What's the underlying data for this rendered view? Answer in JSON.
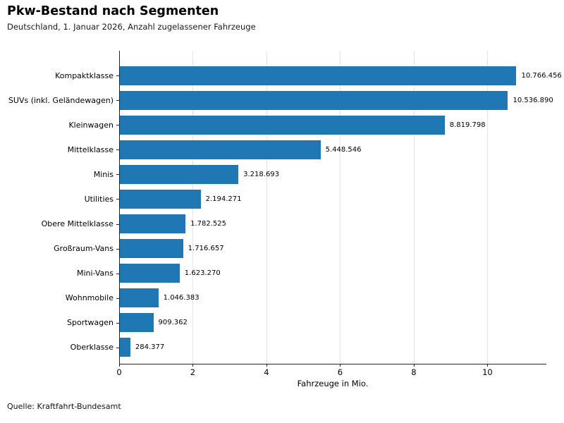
{
  "footer": {
    "source": "Quelle: Kraftfahrt-Bundesamt"
  },
  "chart_data": {
    "type": "bar",
    "orientation": "horizontal",
    "title": "Pkw-Bestand nach Segmenten",
    "subtitle": "Deutschland, 1. Januar 2026, Anzahl zugelassener Fahrzeuge",
    "categories": [
      "Kompaktklasse",
      "SUVs (inkl. Geländewagen)",
      "Kleinwagen",
      "Mittelklasse",
      "Minis",
      "Utilities",
      "Obere Mittelklasse",
      "Großraum-Vans",
      "Mini-Vans",
      "Wohnmobile",
      "Sportwagen",
      "Oberklasse"
    ],
    "values": [
      10766456,
      10536890,
      8819798,
      5448546,
      3218693,
      2194271,
      1782525,
      1716657,
      1623270,
      1046383,
      909362,
      284377
    ],
    "value_labels": [
      "10.766.456",
      "10.536.890",
      "8.819.798",
      "5.448.546",
      "3.218.693",
      "2.194.271",
      "1.782.525",
      "1.716.657",
      "1.623.270",
      "1.046.383",
      "909.362",
      "284.377"
    ],
    "xlabel": "Fahrzeuge in Mio.",
    "x_ticks": [
      0,
      2,
      4,
      6,
      8,
      10
    ],
    "x_tick_labels": [
      "0",
      "2",
      "4",
      "6",
      "8",
      "10"
    ],
    "xlim": [
      0,
      11.6
    ],
    "unit_divisor": 1000000,
    "grid": true,
    "legend": "none",
    "bar_color": "#1f77b4",
    "gridline_color": "#e4e4e4",
    "spine_color": "#262626"
  }
}
